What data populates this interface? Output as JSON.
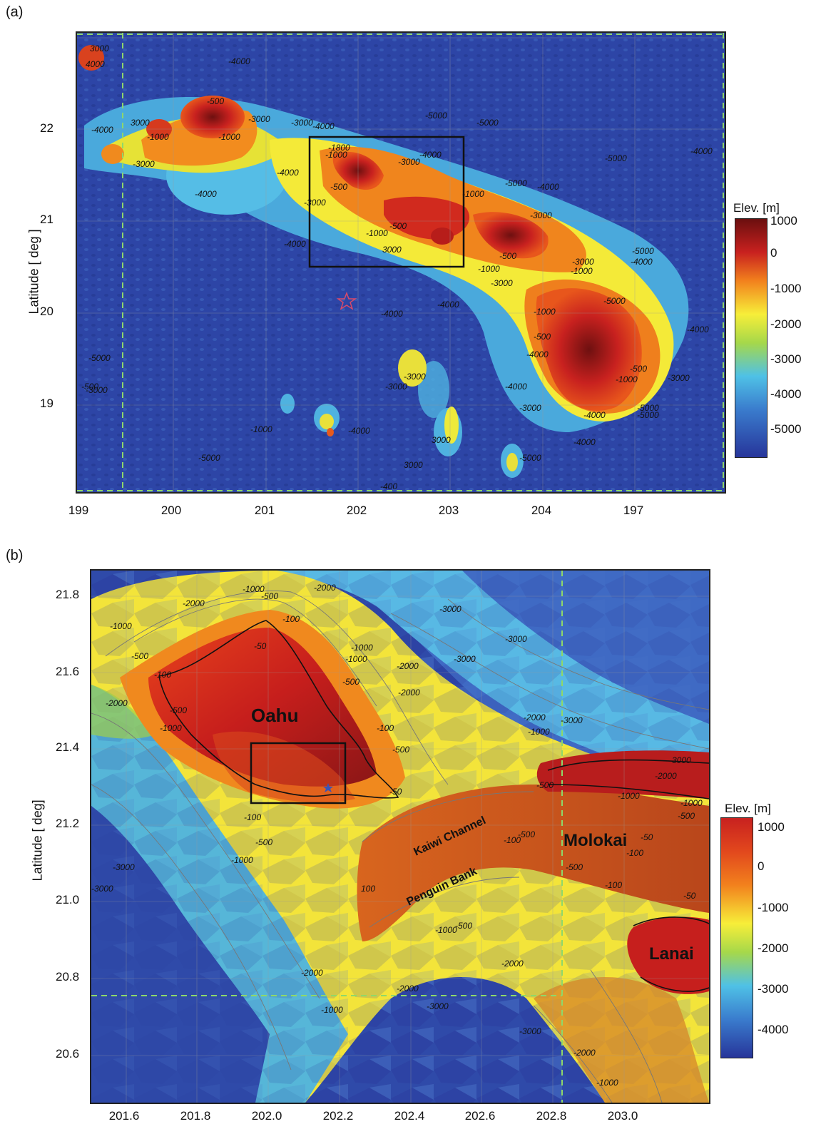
{
  "colors": {
    "deep": "#2a3f9e",
    "mid": "#3f74c8",
    "shelf": "#4fb8e6",
    "shallow": "#f6ec3a",
    "coast": "#f18b1f",
    "land": "#c8211f",
    "peak": "#7a1212",
    "grid": "#9a9a9a",
    "dashed": "#8fd86a"
  },
  "panel_a": {
    "letter": "(a)",
    "ylabel": "Latitude  [ deg ]",
    "xticks": [
      "199",
      "200",
      "201",
      "202",
      "203",
      "204",
      "197"
    ],
    "yticks": [
      "22",
      "21",
      "20",
      "19"
    ],
    "colorbar": {
      "title": "Elev. [m]",
      "ticks": [
        "1000",
        "0",
        "-1000",
        "-2000",
        "-3000",
        "-4000",
        "-5000"
      ]
    },
    "contour_labels": [
      "3000",
      "4000",
      "-4000",
      "-4000",
      "3000",
      "-1000",
      "-3000",
      "-500",
      "-1000",
      "-3000",
      "-4000",
      "-3000",
      "-4000",
      "-1800",
      "-4000",
      "-3000",
      "-4000",
      "-5000",
      "-5000",
      "-4000",
      "-5000",
      "-4000",
      "-500",
      "-1000",
      "-3000",
      "-1000",
      "-1000",
      "3000",
      "-500",
      "-1000",
      "-4000",
      "-3000",
      "-4000",
      "-5000",
      "-3000",
      "-500",
      "-1000",
      "-4000",
      "-3000",
      "-5000",
      "-4000",
      "-5000",
      "-4000",
      "-1000",
      "-4000",
      "-500",
      "-4000",
      "-3000",
      "-1000",
      "-500",
      "-5000",
      "-4000",
      "-3000",
      "-4000",
      "-5000",
      "-3000",
      "-3000",
      "-5000",
      "-5000",
      "-3000",
      "-500",
      "-5000",
      "-4000",
      "-400",
      "-1000",
      "3000",
      "3000"
    ]
  },
  "panel_b": {
    "letter": "(b)",
    "ylabel": "Latitude  [ deg]",
    "xticks": [
      "201.6",
      "201.8",
      "202.0",
      "202.2",
      "202.4",
      "202.6",
      "202.8",
      "203.0"
    ],
    "yticks": [
      "21.8",
      "21.6",
      "21.4",
      "21.2",
      "21.0",
      "20.8",
      "20.6"
    ],
    "colorbar": {
      "title": "Elev. [m]",
      "ticks": [
        "1000",
        "0",
        "-1000",
        "-2000",
        "-3000",
        "-4000"
      ]
    },
    "places": {
      "oahu": "Oahu",
      "molokai": "Molokai",
      "lanai": "Lanai",
      "kaiwi": "Kaiwi Channel",
      "penguin": "Penguin Bank"
    },
    "contour_labels": [
      "-2000",
      "-1000",
      "-500",
      "-2000",
      "-3000",
      "-1000",
      "-100",
      "-500",
      "-50",
      "-100",
      "-1000",
      "-3000",
      "-3000",
      "-2000",
      "-2000",
      "-1000",
      "-500",
      "-1000",
      "-500",
      "-100",
      "-2000",
      "-500",
      "-3000",
      "-3000",
      "-2000",
      "-1000",
      "-1000",
      "-500",
      "-1000",
      "-500",
      "-2000",
      "-3000",
      "-3000",
      "-1000",
      "-500",
      "-100",
      "-50",
      "-100",
      "-500",
      "-100",
      "-50",
      "100",
      "-1000",
      "-500",
      "-100",
      "-2000",
      "-2000",
      "-1000",
      "-2000",
      "-3000",
      "-3000",
      "-2000",
      "-1000",
      "-500",
      "-50"
    ]
  }
}
